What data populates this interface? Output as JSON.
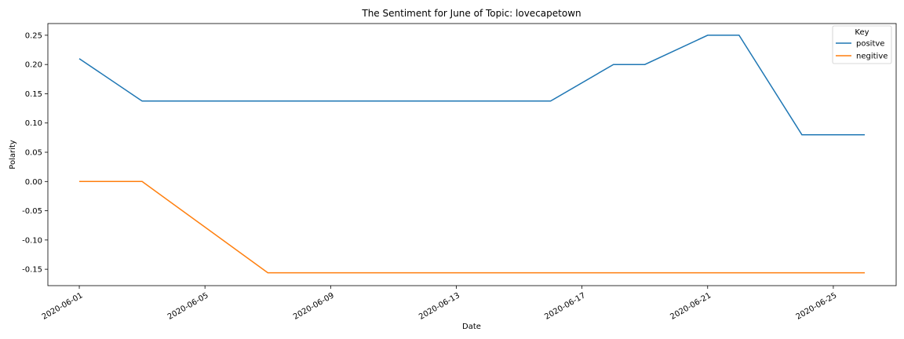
{
  "chart_data": {
    "type": "line",
    "title": "The Sentiment for June of Topic: lovecapetown",
    "xlabel": "Date",
    "ylabel": "Polarity",
    "x_ticks": [
      "2020-06-01",
      "2020-06-05",
      "2020-06-09",
      "2020-06-13",
      "2020-06-17",
      "2020-06-21",
      "2020-06-25"
    ],
    "y_ticks": [
      0.25,
      0.2,
      0.15,
      0.1,
      0.05,
      0.0,
      -0.05,
      -0.1,
      -0.15
    ],
    "xlim": [
      "2020-05-31",
      "2020-06-27"
    ],
    "ylim": [
      -0.178,
      0.27
    ],
    "grid": false,
    "legend": {
      "title": "Key",
      "position": "top-right"
    },
    "series": [
      {
        "name": "positve",
        "color": "#1f77b4",
        "points": [
          [
            "2020-06-01",
            0.21
          ],
          [
            "2020-06-03",
            0.1375
          ],
          [
            "2020-06-16",
            0.1375
          ],
          [
            "2020-06-18",
            0.2
          ],
          [
            "2020-06-19",
            0.2
          ],
          [
            "2020-06-21",
            0.25
          ],
          [
            "2020-06-22",
            0.25
          ],
          [
            "2020-06-24",
            0.08
          ],
          [
            "2020-06-26",
            0.08
          ]
        ]
      },
      {
        "name": "negitive",
        "color": "#ff7f0e",
        "points": [
          [
            "2020-06-01",
            0.0
          ],
          [
            "2020-06-03",
            0.0
          ],
          [
            "2020-06-07",
            -0.156
          ],
          [
            "2020-06-26",
            -0.156
          ]
        ]
      }
    ]
  }
}
